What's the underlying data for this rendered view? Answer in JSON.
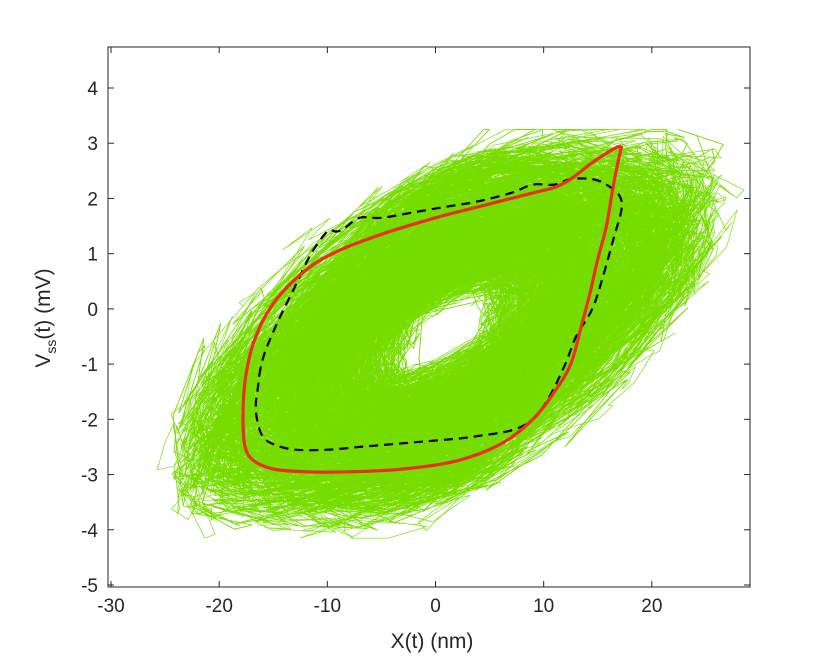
{
  "chart_data": {
    "type": "line",
    "title": "",
    "xlabel": "X(t) (nm)",
    "ylabel": {
      "main": "V",
      "subscript": "ss",
      "rest": "(t) (mV)"
    },
    "xlim": [
      -30,
      30
    ],
    "ylim": [
      -5,
      4.6
    ],
    "x_ticks": [
      "-30",
      "-20",
      "-10",
      "0",
      "10",
      "20"
    ],
    "x_tick_values": [
      -30,
      -20,
      -10,
      0,
      10,
      20
    ],
    "y_ticks": [
      "-5",
      "-4",
      "-3",
      "-2",
      "-1",
      "0",
      "1",
      "2",
      "3",
      "4"
    ],
    "y_tick_values": [
      -5,
      -4,
      -3,
      -2,
      -1,
      0,
      1,
      2,
      3,
      4
    ],
    "grid": false,
    "legend": "none",
    "colors": {
      "trajectories": "#77dd00",
      "limit_cycle": "#e8301f",
      "dashed_cycle": "#000000",
      "axes": "#262626"
    },
    "series": [
      {
        "style": "stochastic-trajectories",
        "color": "#77dd00",
        "description_points": {
          "center": [
            1,
            -0.4
          ],
          "x_extent": [
            -26,
            29
          ],
          "y_extent": [
            -4.15,
            3.25
          ]
        }
      },
      {
        "style": "solid-red",
        "color": "#e8301f",
        "x": [
          17.2,
          16.5,
          14.5,
          12.5,
          11.0,
          9.0,
          7.0,
          4.0,
          0.0,
          -5.0,
          -9.0,
          -12.0,
          -15.0,
          -16.8,
          -17.6,
          -17.8,
          -17.6,
          -16.8,
          -15.0,
          -12.0,
          -8.0,
          -3.0,
          2.0,
          6.0,
          9.0,
          11.0,
          12.5,
          13.5,
          14.3,
          15.0,
          15.8,
          16.5,
          17.2
        ],
        "y": [
          2.95,
          2.9,
          2.65,
          2.35,
          2.2,
          2.1,
          2.0,
          1.85,
          1.65,
          1.35,
          1.05,
          0.7,
          0.1,
          -0.6,
          -1.3,
          -2.0,
          -2.5,
          -2.75,
          -2.9,
          -2.95,
          -2.95,
          -2.9,
          -2.75,
          -2.45,
          -2.0,
          -1.5,
          -1.0,
          -0.3,
          0.3,
          0.9,
          1.5,
          2.3,
          2.95
        ]
      },
      {
        "style": "dashed-black",
        "color": "#000000",
        "x": [
          -16.3,
          -15.8,
          -14.5,
          -13.0,
          -11.5,
          -10.0,
          -9.2,
          -8.5,
          -7.0,
          -5.0,
          -2.0,
          1.0,
          4.0,
          7.0,
          9.0,
          11.0,
          12.5,
          14.5,
          15.8,
          17.0,
          17.2,
          16.5,
          15.5,
          14.5,
          13.0,
          12.0,
          10.5,
          9.0,
          7.0,
          4.0,
          2.0,
          -1.0,
          -4.0,
          -7.0,
          -10.0,
          -13.0,
          -15.0,
          -16.0,
          -16.5,
          -16.6,
          -16.4,
          -16.3
        ],
        "y": [
          -1.2,
          -0.8,
          -0.2,
          0.4,
          1.0,
          1.4,
          1.4,
          1.45,
          1.65,
          1.65,
          1.75,
          1.85,
          1.95,
          2.1,
          2.25,
          2.25,
          2.35,
          2.35,
          2.25,
          2.05,
          1.8,
          1.3,
          0.6,
          0.0,
          -0.5,
          -1.0,
          -1.6,
          -2.0,
          -2.2,
          -2.3,
          -2.35,
          -2.4,
          -2.45,
          -2.5,
          -2.55,
          -2.55,
          -2.45,
          -2.3,
          -2.0,
          -1.7,
          -1.4,
          -1.2
        ]
      }
    ]
  }
}
